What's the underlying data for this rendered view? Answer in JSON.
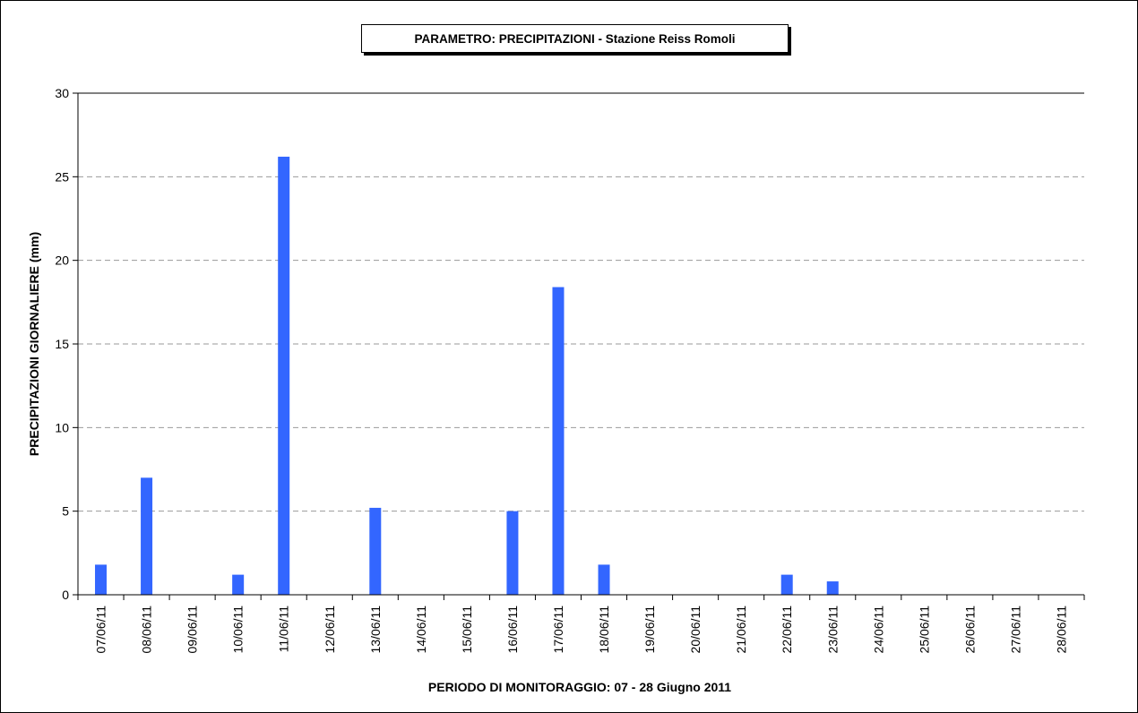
{
  "chart_data": {
    "type": "bar",
    "title": "PARAMETRO: PRECIPITAZIONI - Stazione Reiss Romoli",
    "xlabel": "PERIODO DI MONITORAGGIO: 07 - 28 Giugno 2011",
    "ylabel": "PRECIPITAZIONI GIORNALIERE (mm)",
    "ylim": [
      0,
      30
    ],
    "yticks": [
      0,
      5,
      10,
      15,
      20,
      25,
      30
    ],
    "grid": "horizontal-dashed",
    "categories": [
      "07/06/11",
      "08/06/11",
      "09/06/11",
      "10/06/11",
      "11/06/11",
      "12/06/11",
      "13/06/11",
      "14/06/11",
      "15/06/11",
      "16/06/11",
      "17/06/11",
      "18/06/11",
      "19/06/11",
      "20/06/11",
      "21/06/11",
      "22/06/11",
      "23/06/11",
      "24/06/11",
      "25/06/11",
      "26/06/11",
      "27/06/11",
      "28/06/11"
    ],
    "values": [
      1.8,
      7.0,
      0,
      1.2,
      26.2,
      0,
      5.2,
      0,
      0,
      5.0,
      18.4,
      1.8,
      0,
      0,
      0,
      1.2,
      0.8,
      0,
      0,
      0,
      0,
      0
    ],
    "bar_color": "#3366ff"
  }
}
